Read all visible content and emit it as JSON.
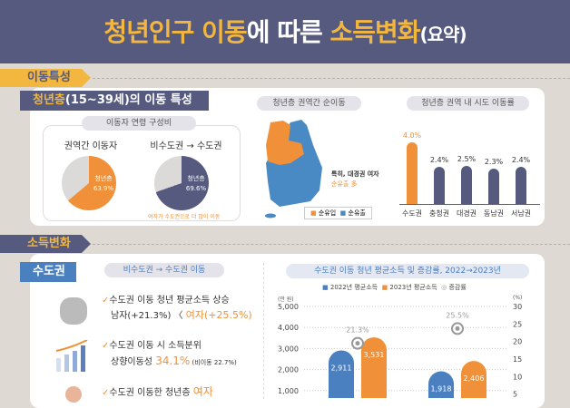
{
  "title": {
    "p1": "청년인구 이동",
    "p2": "에 따른 ",
    "p3": "소득변화",
    "p4": "(요약)"
  },
  "section1": {
    "label": "이동특성",
    "tab_a": "청년층",
    "tab_b": "(15~39세)의 이동 특성",
    "age_box": {
      "title": "이동자 연령 구성비",
      "pies": [
        {
          "title": "권역간 이동자",
          "label": "청년층",
          "value": "63.9%",
          "pct": 63.9,
          "color": "#f0913a"
        },
        {
          "title": "비수도권 → 수도권",
          "label": "청년층",
          "value": "69.6%",
          "pct": 69.6,
          "color": "#555a7e"
        }
      ],
      "note": "여자가 수도권으로 더 많이 이동"
    },
    "map": {
      "title": "청년층 권역간 순이동",
      "note1": "특히, 대경권 여자",
      "note2": "순유출 多",
      "legend": [
        {
          "label": "순유입",
          "color": "#f0913a"
        },
        {
          "label": "순유출",
          "color": "#4a8ac4"
        }
      ]
    },
    "rate": {
      "title": "청년층 권역 내 시도 이동률",
      "categories": [
        "수도권",
        "충청권",
        "대경권",
        "동남권",
        "서남권"
      ],
      "values": [
        4.0,
        2.4,
        2.5,
        2.3,
        2.4
      ],
      "labels": [
        "4.0%",
        "2.4%",
        "2.5%",
        "2.3%",
        "2.4%"
      ]
    }
  },
  "section2": {
    "label": "소득변화",
    "tab": "수도권",
    "pill": "비수도권 → 수도권 이동",
    "items": [
      {
        "line1": "수도권 이동 청년 평균소득 상승",
        "line2a": "남자(+21.3%) 〈 ",
        "line2b": "여자(+25.5%)"
      },
      {
        "line1": "수도권 이동 시 소득분위",
        "line2a": "상향이동성 ",
        "line2b": "34.1%",
        "line2c": " (비이동 22.7%)"
      },
      {
        "line1a": "수도권 이동한 청년층 ",
        "line1b": "여자"
      }
    ],
    "chart_data": {
      "type": "bar",
      "title": "수도권 이동 청년 평균소득 및 증감률, 2022→2023년",
      "ylabel": "(만 원)",
      "y2label": "(%)",
      "ylim": [
        0,
        5000
      ],
      "y2lim": [
        0,
        30
      ],
      "yticks": [
        "1,000",
        "2,000",
        "3,000",
        "4,000",
        "5,000"
      ],
      "y2ticks": [
        "5",
        "10",
        "15",
        "20",
        "25",
        "30"
      ],
      "series": [
        {
          "name": "2022년 평균소득",
          "color": "#4a7fc0",
          "values": [
            2911,
            1918
          ],
          "labels": [
            "2,911",
            "1,918"
          ]
        },
        {
          "name": "2023년 평균소득",
          "color": "#f0913a",
          "values": [
            3531,
            2406
          ],
          "labels": [
            "3,531",
            "2,406"
          ]
        },
        {
          "name": "증감률",
          "color": "#999999",
          "values": [
            21.3,
            25.5
          ],
          "labels": [
            "21.3%",
            "25.5%"
          ]
        }
      ]
    }
  }
}
